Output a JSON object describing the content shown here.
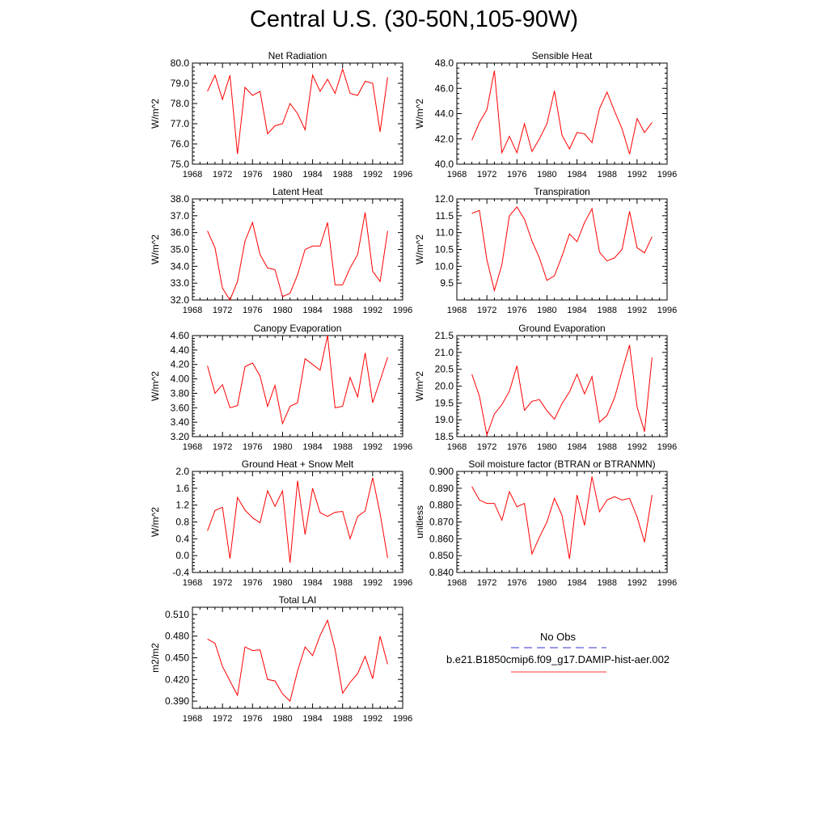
{
  "title": "Central U.S. (30-50N,105-90W)",
  "legend": {
    "entries": [
      {
        "label": "No Obs",
        "color": "#3333cc",
        "style": "dashed"
      },
      {
        "label": "b.e21.B1850cmip6.f09_g17.DAMIP-hist-aer.002",
        "color": "#ff3333",
        "style": "solid"
      }
    ]
  },
  "chart_data": [
    {
      "type": "line",
      "title": "Net Radiation",
      "ylabel": "W/m^2",
      "xlim": [
        1968,
        1996
      ],
      "xticks": [
        "1968",
        "1972",
        "1976",
        "1980",
        "1984",
        "1988",
        "1992",
        "1996"
      ],
      "ylim": [
        75.0,
        80.0
      ],
      "yticks": [
        "75.0",
        "76.0",
        "77.0",
        "78.0",
        "79.0",
        "80.0"
      ],
      "x": [
        1970,
        1971,
        1972,
        1973,
        1974,
        1975,
        1976,
        1977,
        1978,
        1979,
        1980,
        1981,
        1982,
        1983,
        1984,
        1985,
        1986,
        1987,
        1988,
        1989,
        1990,
        1991,
        1992,
        1993,
        1994
      ],
      "series": [
        {
          "color": "#ff0000",
          "values": [
            78.6,
            79.4,
            78.2,
            79.4,
            75.5,
            78.8,
            78.4,
            78.6,
            76.5,
            76.9,
            77.0,
            78.0,
            77.5,
            76.7,
            79.4,
            78.6,
            79.2,
            78.5,
            79.7,
            78.5,
            78.4,
            79.1,
            79.0,
            76.6,
            79.3
          ]
        }
      ]
    },
    {
      "type": "line",
      "title": "Sensible Heat",
      "ylabel": "W/m^2",
      "xlim": [
        1968,
        1996
      ],
      "xticks": [
        "1968",
        "1972",
        "1976",
        "1980",
        "1984",
        "1988",
        "1992",
        "1996"
      ],
      "ylim": [
        40.0,
        48.0
      ],
      "yticks": [
        "40.0",
        "42.0",
        "44.0",
        "46.0",
        "48.0"
      ],
      "x": [
        1970,
        1971,
        1972,
        1973,
        1974,
        1975,
        1976,
        1977,
        1978,
        1979,
        1980,
        1981,
        1982,
        1983,
        1984,
        1985,
        1986,
        1987,
        1988,
        1989,
        1990,
        1991,
        1992,
        1993,
        1994
      ],
      "series": [
        {
          "color": "#ff0000",
          "values": [
            41.9,
            43.3,
            44.3,
            47.4,
            40.9,
            42.2,
            40.9,
            43.2,
            41.0,
            42.0,
            43.2,
            45.8,
            42.3,
            41.2,
            42.5,
            42.4,
            41.7,
            44.4,
            45.7,
            44.2,
            42.8,
            40.8,
            43.6,
            42.5,
            43.3
          ]
        }
      ]
    },
    {
      "type": "line",
      "title": "Latent Heat",
      "ylabel": "W/m^2",
      "xlim": [
        1968,
        1996
      ],
      "xticks": [
        "1968",
        "1972",
        "1976",
        "1980",
        "1984",
        "1988",
        "1992",
        "1996"
      ],
      "ylim": [
        32.0,
        38.0
      ],
      "yticks": [
        "32.0",
        "33.0",
        "34.0",
        "35.0",
        "36.0",
        "37.0",
        "38.0"
      ],
      "x": [
        1970,
        1971,
        1972,
        1973,
        1974,
        1975,
        1976,
        1977,
        1978,
        1979,
        1980,
        1981,
        1982,
        1983,
        1984,
        1985,
        1986,
        1987,
        1988,
        1989,
        1990,
        1991,
        1992,
        1993,
        1994
      ],
      "series": [
        {
          "color": "#ff0000",
          "values": [
            36.1,
            35.1,
            32.7,
            32.0,
            33.1,
            35.5,
            36.6,
            34.7,
            33.9,
            33.8,
            32.2,
            32.4,
            33.5,
            35.0,
            35.2,
            35.2,
            36.6,
            32.9,
            32.9,
            33.9,
            34.7,
            37.2,
            33.7,
            33.1,
            36.1
          ]
        }
      ]
    },
    {
      "type": "line",
      "title": "Transpiration",
      "ylabel": "W/m^2",
      "xlim": [
        1968,
        1996
      ],
      "xticks": [
        "1968",
        "1972",
        "1976",
        "1980",
        "1984",
        "1988",
        "1992",
        "1996"
      ],
      "ylim": [
        9.0,
        12.0
      ],
      "yticks": [
        "9.5",
        "10.0",
        "10.5",
        "11.0",
        "11.5",
        "12.0"
      ],
      "x": [
        1970,
        1971,
        1972,
        1973,
        1974,
        1975,
        1976,
        1977,
        1978,
        1979,
        1980,
        1981,
        1982,
        1983,
        1984,
        1985,
        1986,
        1987,
        1988,
        1989,
        1990,
        1991,
        1992,
        1993,
        1994
      ],
      "series": [
        {
          "color": "#ff0000",
          "values": [
            11.57,
            11.66,
            10.2,
            9.28,
            10.05,
            11.5,
            11.76,
            11.4,
            10.75,
            10.25,
            9.58,
            9.72,
            10.3,
            10.96,
            10.73,
            11.3,
            11.71,
            10.42,
            10.16,
            10.25,
            10.5,
            11.63,
            10.55,
            10.4,
            10.88
          ]
        }
      ]
    },
    {
      "type": "line",
      "title": "Canopy Evaporation",
      "ylabel": "W/m^2",
      "xlim": [
        1968,
        1996
      ],
      "xticks": [
        "1968",
        "1972",
        "1976",
        "1980",
        "1984",
        "1988",
        "1992",
        "1996"
      ],
      "ylim": [
        3.2,
        4.6
      ],
      "yticks": [
        "3.20",
        "3.40",
        "3.60",
        "3.80",
        "4.00",
        "4.20",
        "4.40",
        "4.60"
      ],
      "x": [
        1970,
        1971,
        1972,
        1973,
        1974,
        1975,
        1976,
        1977,
        1978,
        1979,
        1980,
        1981,
        1982,
        1983,
        1984,
        1985,
        1986,
        1987,
        1988,
        1989,
        1990,
        1991,
        1992,
        1993,
        1994
      ],
      "series": [
        {
          "color": "#ff0000",
          "values": [
            4.18,
            3.8,
            3.92,
            3.6,
            3.63,
            4.17,
            4.22,
            4.04,
            3.62,
            3.91,
            3.38,
            3.62,
            3.67,
            4.28,
            4.2,
            4.12,
            4.6,
            3.6,
            3.62,
            4.02,
            3.75,
            4.36,
            3.67,
            3.98,
            4.3
          ]
        }
      ]
    },
    {
      "type": "line",
      "title": "Ground Evaporation",
      "ylabel": "W/m^2",
      "xlim": [
        1968,
        1996
      ],
      "xticks": [
        "1968",
        "1972",
        "1976",
        "1980",
        "1984",
        "1988",
        "1992",
        "1996"
      ],
      "ylim": [
        18.5,
        21.5
      ],
      "yticks": [
        "18.5",
        "19.0",
        "19.5",
        "20.0",
        "20.5",
        "21.0",
        "21.5"
      ],
      "x": [
        1970,
        1971,
        1972,
        1973,
        1974,
        1975,
        1976,
        1977,
        1978,
        1979,
        1980,
        1981,
        1982,
        1983,
        1984,
        1985,
        1986,
        1987,
        1988,
        1989,
        1990,
        1991,
        1992,
        1993,
        1994
      ],
      "series": [
        {
          "color": "#ff0000",
          "values": [
            20.35,
            19.7,
            18.55,
            19.17,
            19.45,
            19.85,
            20.6,
            19.28,
            19.55,
            19.6,
            19.27,
            19.02,
            19.48,
            19.83,
            20.35,
            19.77,
            20.28,
            18.93,
            19.13,
            19.65,
            20.45,
            21.22,
            19.38,
            18.65,
            20.85
          ]
        }
      ]
    },
    {
      "type": "line",
      "title": "Ground Heat + Snow Melt",
      "ylabel": "W/m^2",
      "xlim": [
        1968,
        1996
      ],
      "xticks": [
        "1968",
        "1972",
        "1976",
        "1980",
        "1984",
        "1988",
        "1992",
        "1996"
      ],
      "ylim": [
        -0.4,
        2.0
      ],
      "yticks": [
        "-0.4",
        "0.0",
        "0.4",
        "0.8",
        "1.2",
        "1.6",
        "2.0"
      ],
      "x": [
        1970,
        1971,
        1972,
        1973,
        1974,
        1975,
        1976,
        1977,
        1978,
        1979,
        1980,
        1981,
        1982,
        1983,
        1984,
        1985,
        1986,
        1987,
        1988,
        1989,
        1990,
        1991,
        1992,
        1993,
        1994
      ],
      "series": [
        {
          "color": "#ff0000",
          "values": [
            0.59,
            1.07,
            1.15,
            -0.07,
            1.38,
            1.08,
            0.9,
            0.78,
            1.54,
            1.17,
            1.54,
            -0.17,
            1.78,
            0.5,
            1.6,
            1.02,
            0.93,
            1.03,
            1.05,
            0.4,
            0.93,
            1.06,
            1.85,
            1.0,
            -0.06
          ]
        }
      ]
    },
    {
      "type": "line",
      "title": "Soil moisture factor (BTRAN or BTRANMN)",
      "ylabel": "unitless",
      "xlim": [
        1968,
        1996
      ],
      "xticks": [
        "1968",
        "1972",
        "1976",
        "1980",
        "1984",
        "1988",
        "1992",
        "1996"
      ],
      "ylim": [
        0.84,
        0.9
      ],
      "yticks": [
        "0.840",
        "0.850",
        "0.860",
        "0.870",
        "0.880",
        "0.890",
        "0.900"
      ],
      "x": [
        1970,
        1971,
        1972,
        1973,
        1974,
        1975,
        1976,
        1977,
        1978,
        1979,
        1980,
        1981,
        1982,
        1983,
        1984,
        1985,
        1986,
        1987,
        1988,
        1989,
        1990,
        1991,
        1992,
        1993,
        1994
      ],
      "series": [
        {
          "color": "#ff0000",
          "values": [
            0.891,
            0.883,
            0.881,
            0.881,
            0.871,
            0.888,
            0.879,
            0.881,
            0.851,
            0.861,
            0.87,
            0.884,
            0.874,
            0.848,
            0.886,
            0.868,
            0.897,
            0.876,
            0.883,
            0.885,
            0.883,
            0.884,
            0.873,
            0.858,
            0.886
          ]
        }
      ]
    },
    {
      "type": "line",
      "title": "Total LAI",
      "ylabel": "m2/m2",
      "xlim": [
        1968,
        1996
      ],
      "xticks": [
        "1968",
        "1972",
        "1976",
        "1980",
        "1984",
        "1988",
        "1992",
        "1996"
      ],
      "ylim": [
        0.38,
        0.52
      ],
      "yticks": [
        "0.390",
        "0.420",
        "0.450",
        "0.480",
        "0.510"
      ],
      "x": [
        1970,
        1971,
        1972,
        1973,
        1974,
        1975,
        1976,
        1977,
        1978,
        1979,
        1980,
        1981,
        1982,
        1983,
        1984,
        1985,
        1986,
        1987,
        1988,
        1989,
        1990,
        1991,
        1992,
        1993,
        1994
      ],
      "series": [
        {
          "color": "#ff0000",
          "values": [
            0.476,
            0.47,
            0.438,
            0.418,
            0.398,
            0.465,
            0.46,
            0.461,
            0.42,
            0.418,
            0.4,
            0.39,
            0.432,
            0.465,
            0.453,
            0.481,
            0.502,
            0.462,
            0.401,
            0.416,
            0.428,
            0.452,
            0.421,
            0.48,
            0.441
          ]
        }
      ]
    }
  ]
}
